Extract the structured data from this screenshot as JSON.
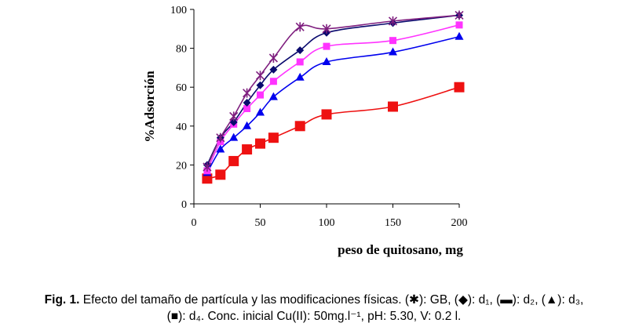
{
  "chart_data": {
    "type": "line",
    "title": "",
    "xlabel": "peso de quitosano, mg",
    "ylabel": "%Adsorción",
    "xlim": [
      0,
      200
    ],
    "ylim": [
      0,
      100
    ],
    "xticks": [
      "0",
      "50",
      "100",
      "150",
      "200"
    ],
    "yticks": [
      "0",
      "20",
      "40",
      "60",
      "80",
      "100"
    ],
    "grid": false,
    "series": [
      {
        "name": "GB",
        "marker": "star",
        "color": "#7f1f7f",
        "x": [
          10,
          20,
          30,
          40,
          50,
          60,
          80,
          100,
          150,
          200
        ],
        "y": [
          19,
          34,
          45,
          57,
          66,
          75,
          91,
          90,
          94,
          97
        ]
      },
      {
        "name": "d1",
        "marker": "diamond",
        "color": "#0a0a6e",
        "x": [
          10,
          20,
          30,
          40,
          50,
          60,
          80,
          100,
          150,
          200
        ],
        "y": [
          20,
          34,
          42,
          52,
          61,
          69,
          79,
          88,
          93,
          97
        ]
      },
      {
        "name": "d2",
        "marker": "square",
        "color": "#ff33ff",
        "x": [
          10,
          20,
          30,
          40,
          50,
          60,
          80,
          100,
          150,
          200
        ],
        "y": [
          17,
          32,
          41,
          49,
          56,
          63,
          73,
          81,
          84,
          92
        ]
      },
      {
        "name": "d3",
        "marker": "triangle",
        "color": "#0000ee",
        "x": [
          10,
          20,
          30,
          40,
          50,
          60,
          80,
          100,
          150,
          200
        ],
        "y": [
          16,
          28,
          34,
          40,
          47,
          55,
          65,
          73,
          78,
          86
        ]
      },
      {
        "name": "d4",
        "marker": "big-square",
        "color": "#ee1111",
        "x": [
          10,
          20,
          30,
          40,
          50,
          60,
          80,
          100,
          150,
          200
        ],
        "y": [
          13,
          15,
          22,
          28,
          31,
          34,
          40,
          46,
          50,
          60
        ]
      }
    ]
  },
  "caption": {
    "fig_label": "Fig. 1.",
    "line1": "Efecto del tamaño de partícula y las modificaciones físicas.   (✱): GB, (◆): d₁, (▬): d₂, (▲): d₃,",
    "line2": "(■): d₄.  Conc. inicial Cu(II): 50mg.l⁻¹, pH: 5.30, V: 0.2 l."
  }
}
